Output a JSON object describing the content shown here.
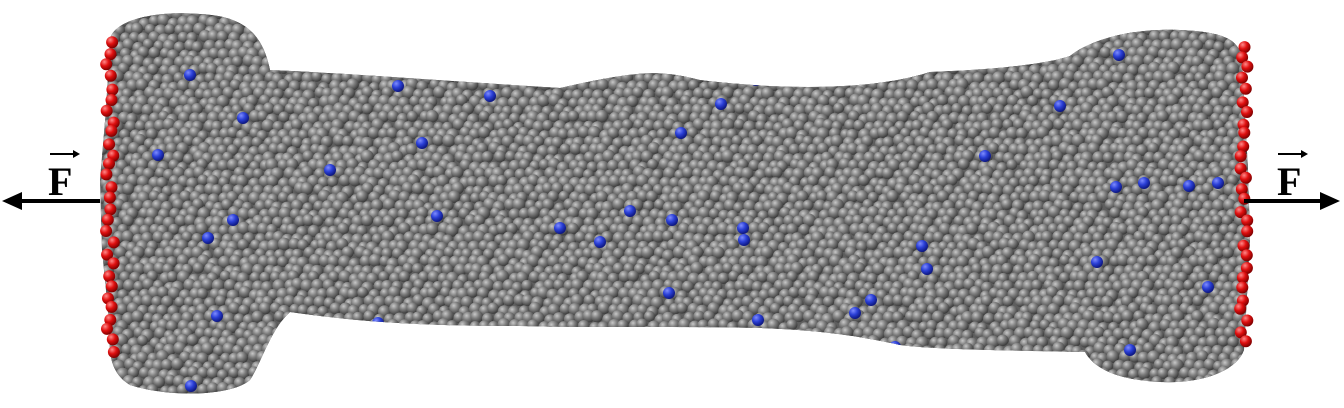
{
  "diagram": {
    "force_left_label": "F",
    "force_right_label": "F",
    "colors": {
      "background": "#ffffff",
      "bulk_bead": "#7a7a7a",
      "tagged_bead": "#2a3fd6",
      "boundary_bead": "#e01010",
      "arrow": "#000000"
    }
  }
}
